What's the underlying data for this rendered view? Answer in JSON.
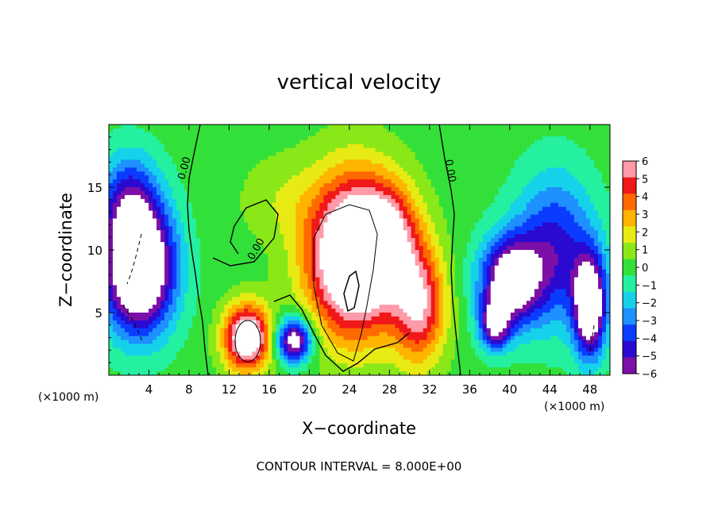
{
  "chart_data": {
    "type": "heatmap",
    "title": "vertical velocity",
    "xlabel": "X−coordinate",
    "ylabel": "Z−coordinate",
    "x_unit": "(×1000 m)",
    "y_unit": "(×1000 m)",
    "xlim": [
      0,
      50
    ],
    "ylim": [
      0,
      20
    ],
    "x_ticks": [
      4,
      8,
      12,
      16,
      20,
      24,
      28,
      32,
      36,
      40,
      44,
      48
    ],
    "x_tick_labels": [
      "4",
      "8",
      "12",
      "16",
      "20",
      "24",
      "28",
      "32",
      "36",
      "40",
      "44",
      "48"
    ],
    "y_ticks": [
      5,
      10,
      15
    ],
    "y_tick_labels": [
      "5",
      "10",
      "15"
    ],
    "colorbar": {
      "min": -6,
      "max": 6,
      "ticks": [
        6,
        5,
        4,
        3,
        2,
        1,
        0,
        -1,
        -2,
        -3,
        -4,
        -5,
        -6
      ],
      "tick_labels": [
        "6",
        "5",
        "4",
        "3",
        "2",
        "1",
        "0",
        "−1",
        "−2",
        "−3",
        "−4",
        "−5",
        "−6"
      ],
      "colors": [
        "#7b0fa8",
        "#2a0ad0",
        "#0a3cff",
        "#1e90ff",
        "#15d2ea",
        "#24f0a0",
        "#33e03a",
        "#8ae818",
        "#e8ea14",
        "#ffb400",
        "#ff6a00",
        "#f01818",
        "#ff9aa8"
      ]
    },
    "contour_labels": [
      "0.00",
      "0.00",
      "0.00"
    ],
    "annotation": "CONTOUR INTERVAL = 8.000E+00",
    "features": [
      {
        "kind": "updraft",
        "x": 24.5,
        "z": 9.5,
        "sx": 4.6,
        "sz": 6.2,
        "amp": 11
      },
      {
        "kind": "updraft",
        "x": 13.8,
        "z": 3.0,
        "sx": 2.3,
        "sz": 2.6,
        "amp": 9
      },
      {
        "kind": "updraft",
        "x": 31.0,
        "z": 5.5,
        "sx": 2.6,
        "sz": 4.5,
        "amp": 6
      },
      {
        "kind": "updraft",
        "x": 28.0,
        "z": 11.0,
        "sx": 3.0,
        "sz": 4.0,
        "amp": 4
      },
      {
        "kind": "weak-updraft",
        "x": 17.0,
        "z": 14.0,
        "sx": 4.0,
        "sz": 3.5,
        "amp": 1.2
      },
      {
        "kind": "downdraft",
        "x": 3.0,
        "z": 8.5,
        "sx": 3.5,
        "sz": 5.0,
        "amp": -11
      },
      {
        "kind": "downdraft",
        "x": 2.0,
        "z": 14.0,
        "sx": 3.0,
        "sz": 4.0,
        "amp": -4
      },
      {
        "kind": "downdraft",
        "x": 18.5,
        "z": 2.8,
        "sx": 1.8,
        "sz": 1.8,
        "amp": -8
      },
      {
        "kind": "downdraft",
        "x": 40.0,
        "z": 7.5,
        "sx": 3.0,
        "sz": 3.5,
        "amp": -8
      },
      {
        "kind": "downdraft",
        "x": 44.5,
        "z": 10.0,
        "sx": 4.0,
        "sz": 6.0,
        "amp": -5
      },
      {
        "kind": "downdraft",
        "x": 48.0,
        "z": 5.5,
        "sx": 1.6,
        "sz": 4.0,
        "amp": -9
      },
      {
        "kind": "downdraft",
        "x": 38.5,
        "z": 4.0,
        "sx": 1.5,
        "sz": 2.0,
        "amp": -6
      }
    ]
  }
}
